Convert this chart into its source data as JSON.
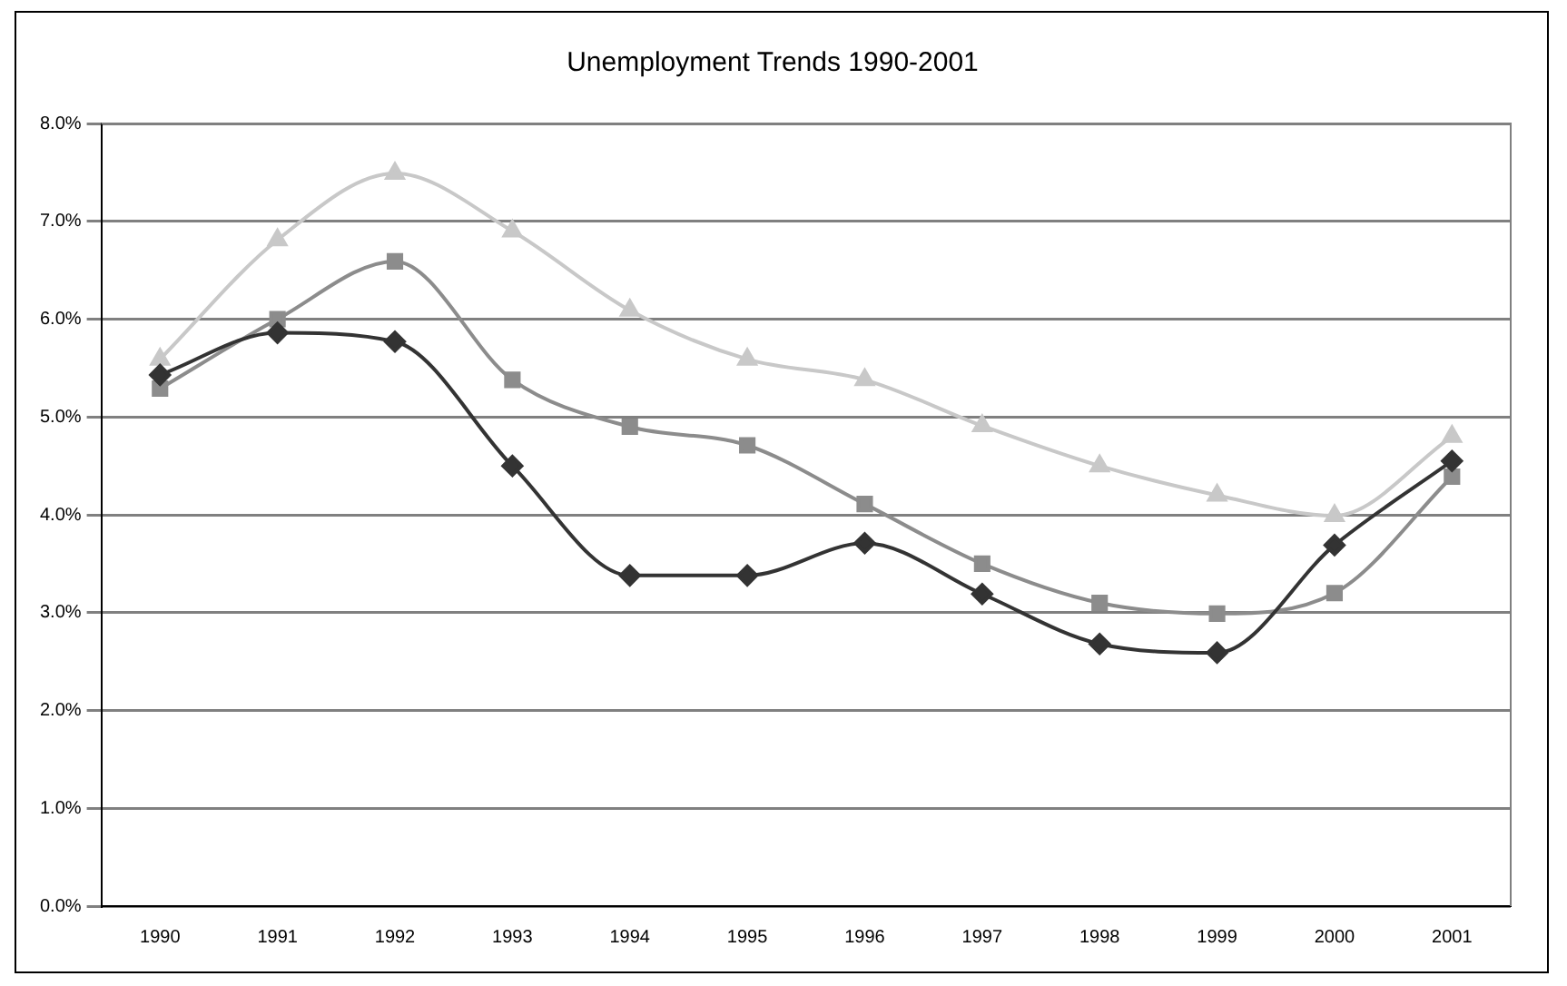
{
  "chart_data": {
    "type": "line",
    "title": "Unemployment Trends 1990-2001",
    "categories": [
      "1990",
      "1991",
      "1992",
      "1993",
      "1994",
      "1995",
      "1996",
      "1997",
      "1998",
      "1999",
      "2000",
      "2001"
    ],
    "series": [
      {
        "color": "#333333",
        "marker": "diamond",
        "values": [
          5.43,
          5.86,
          5.77,
          4.5,
          3.38,
          3.38,
          3.71,
          3.19,
          2.68,
          2.59,
          3.69,
          4.55
        ]
      },
      {
        "color": "#8c8c8c",
        "marker": "square",
        "values": [
          5.29,
          6.0,
          6.59,
          5.38,
          4.9,
          4.71,
          4.11,
          3.5,
          3.1,
          2.99,
          3.2,
          4.39
        ]
      },
      {
        "color": "#c8c8c8",
        "marker": "triangle",
        "values": [
          5.59,
          6.81,
          7.49,
          6.9,
          6.09,
          5.59,
          5.38,
          4.91,
          4.5,
          4.2,
          3.99,
          4.8
        ]
      }
    ],
    "ylim": [
      0,
      8
    ],
    "yticks": [
      {
        "value": 0,
        "label": "0.0%"
      },
      {
        "value": 1,
        "label": "1.0%"
      },
      {
        "value": 2,
        "label": "2.0%"
      },
      {
        "value": 3,
        "label": "3.0%"
      },
      {
        "value": 4,
        "label": "4.0%"
      },
      {
        "value": 5,
        "label": "5.0%"
      },
      {
        "value": 6,
        "label": "6.0%"
      },
      {
        "value": 7,
        "label": "7.0%"
      },
      {
        "value": 8,
        "label": "8.0%"
      }
    ],
    "grid": "y",
    "legend": false,
    "line_style": "solid"
  }
}
